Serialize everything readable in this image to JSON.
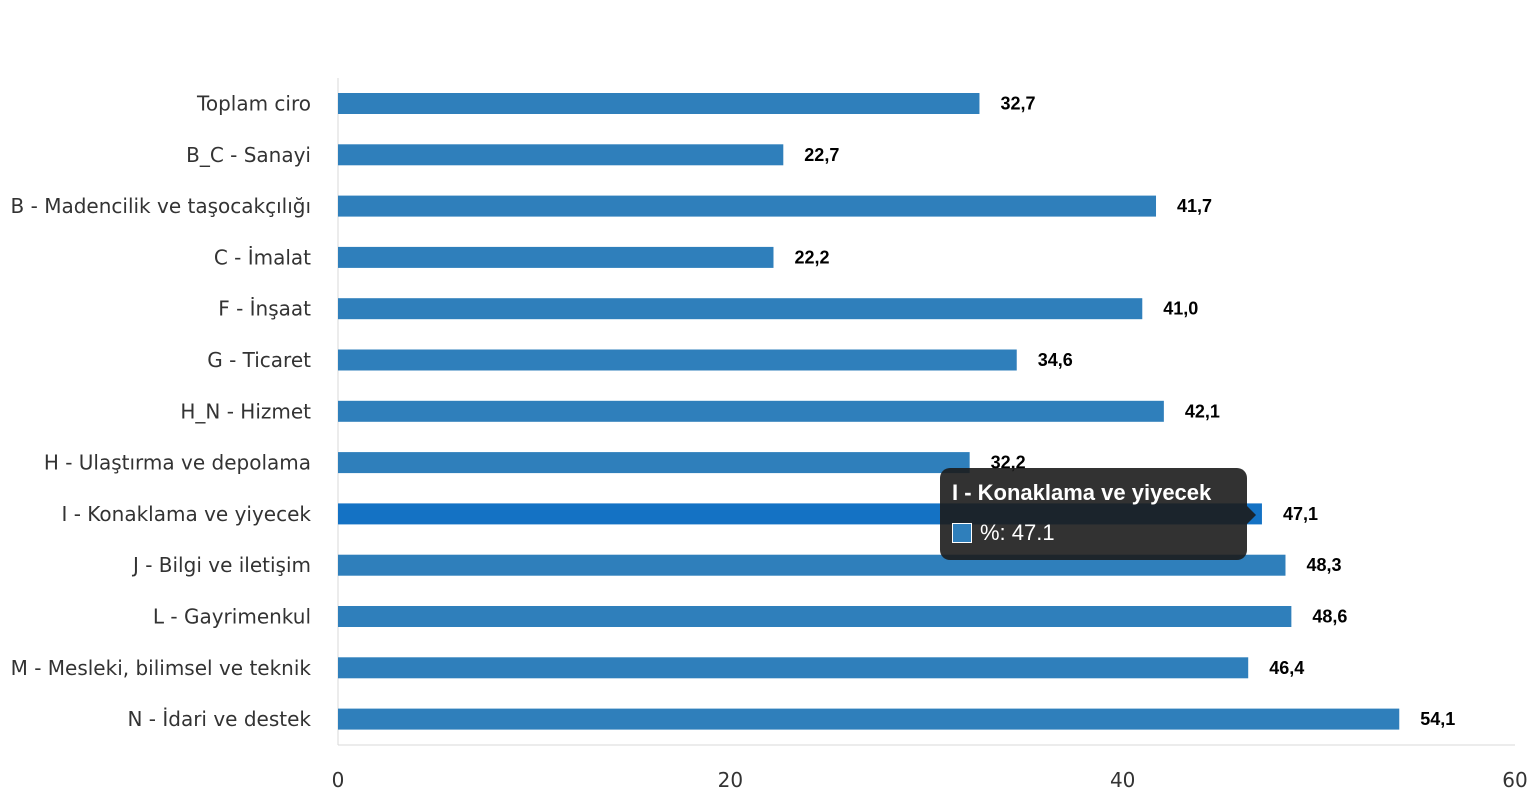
{
  "chart_data": {
    "type": "bar",
    "orientation": "horizontal",
    "categories": [
      "Toplam ciro",
      "B_C - Sanayi",
      "B - Madencilik ve taşocakçılığı",
      "C - İmalat",
      "F - İnşaat",
      "G - Ticaret",
      "H_N - Hizmet",
      "H - Ulaştırma ve depolama",
      "I - Konaklama ve yiyecek",
      "J - Bilgi ve iletişim",
      "L - Gayrimenkul",
      "M - Mesleki, bilimsel ve teknik",
      "N - İdari ve destek"
    ],
    "values": [
      32.7,
      22.7,
      41.7,
      22.2,
      41.0,
      34.6,
      42.1,
      32.2,
      47.1,
      48.3,
      48.6,
      46.4,
      54.1
    ],
    "value_labels": [
      "32,7",
      "22,7",
      "41,7",
      "22,2",
      "41,0",
      "34,6",
      "42,1",
      "32,2",
      "47,1",
      "48,3",
      "48,6",
      "46,4",
      "54,1"
    ],
    "xlim": [
      0,
      60
    ],
    "xticks": [
      0,
      20,
      40,
      60
    ],
    "grid": false,
    "legend": "none",
    "colors": {
      "bar": "#2f7fbb",
      "bar_highlight": "#1472c4"
    },
    "highlight_index": 8
  },
  "tooltip": {
    "title": "I - Konaklama ve yiyecek",
    "value_text": "%: 47.1"
  }
}
